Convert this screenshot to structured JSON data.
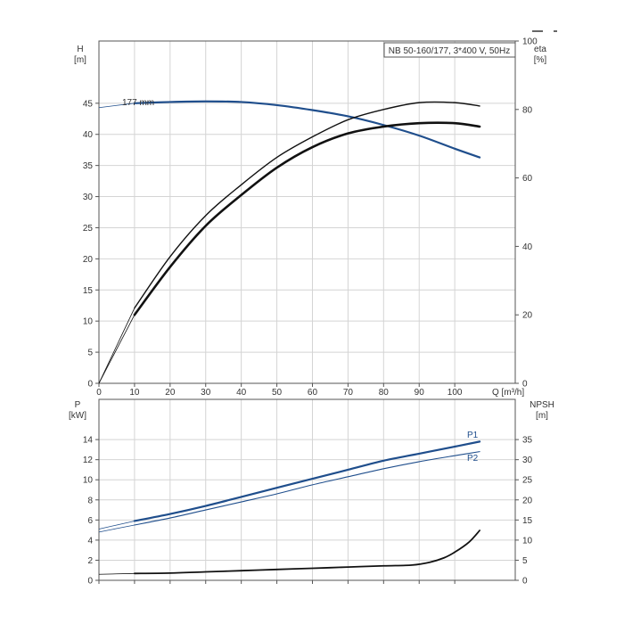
{
  "chart_data": [
    {
      "type": "line",
      "panel": "head-efficiency",
      "title": "NB 50-160/177, 3*400 V, 50Hz",
      "x_axis": {
        "label": "Q [m³/h]",
        "range": [
          0,
          117
        ],
        "ticks": [
          "0",
          "10",
          "20",
          "30",
          "40",
          "50",
          "60",
          "70",
          "80",
          "90",
          "100"
        ],
        "tick_values": [
          0,
          10,
          20,
          30,
          40,
          50,
          60,
          70,
          80,
          90,
          100
        ]
      },
      "y_left": {
        "label_top": "H",
        "label_bottom": "[m]",
        "range": [
          0,
          55
        ],
        "ticks": [
          "0",
          "5",
          "10",
          "15",
          "20",
          "25",
          "30",
          "35",
          "40",
          "45"
        ],
        "tick_values": [
          0,
          5,
          10,
          15,
          20,
          25,
          30,
          35,
          40,
          45
        ]
      },
      "y_right": {
        "label_top": "eta",
        "label_bottom": "[%]",
        "range": [
          0,
          100
        ],
        "ticks": [
          "0",
          "20",
          "40",
          "60",
          "80",
          "100"
        ],
        "tick_values": [
          0,
          20,
          40,
          60,
          80,
          100
        ]
      },
      "grid": true,
      "annotation": "177 mm",
      "series": [
        {
          "axis": "left",
          "color": "#1f4e8c",
          "width": 2.2,
          "x": [
            10,
            20,
            30,
            40,
            50,
            60,
            70,
            80,
            90,
            100,
            107
          ],
          "y": [
            45.0,
            45.2,
            45.3,
            45.2,
            44.7,
            43.9,
            42.9,
            41.5,
            39.8,
            37.7,
            36.3
          ],
          "ext_x": [
            0,
            10
          ],
          "ext_y": [
            44.3,
            45.0
          ]
        },
        {
          "axis": "right",
          "color": "#111111",
          "width": 1.4,
          "x": [
            10,
            20,
            30,
            40,
            50,
            60,
            70,
            80,
            90,
            100,
            107
          ],
          "y": [
            22,
            37,
            49,
            58,
            66,
            72,
            77,
            80,
            82,
            82,
            81
          ],
          "ext_x": [
            0,
            10
          ],
          "ext_y": [
            0,
            22
          ]
        },
        {
          "axis": "right",
          "color": "#111111",
          "width": 2.6,
          "x": [
            10,
            20,
            30,
            40,
            50,
            60,
            70,
            80,
            90,
            100,
            107
          ],
          "y": [
            20,
            34,
            46,
            55,
            63,
            69,
            73,
            75,
            76,
            76,
            75
          ],
          "ext_x": [
            0,
            10
          ],
          "ext_y": [
            0,
            20
          ]
        }
      ]
    },
    {
      "type": "line",
      "panel": "power-npsh",
      "x_axis": {
        "range": [
          0,
          117
        ],
        "tick_values": [
          0,
          10,
          20,
          30,
          40,
          50,
          60,
          70,
          80,
          90,
          100
        ]
      },
      "y_left": {
        "label_top": "P",
        "label_bottom": "[kW]",
        "range": [
          0,
          18
        ],
        "ticks": [
          "0",
          "2",
          "4",
          "6",
          "8",
          "10",
          "12",
          "14"
        ],
        "tick_values": [
          0,
          2,
          4,
          6,
          8,
          10,
          12,
          14
        ]
      },
      "y_right": {
        "label_top": "NPSH",
        "label_bottom": "[m]",
        "range": [
          0,
          45
        ],
        "ticks": [
          "0",
          "5",
          "10",
          "15",
          "20",
          "25",
          "30",
          "35"
        ],
        "tick_values": [
          0,
          5,
          10,
          15,
          20,
          25,
          30,
          35
        ]
      },
      "grid": true,
      "series": [
        {
          "name": "P1",
          "axis": "left",
          "color": "#1f4e8c",
          "width": 2.2,
          "x": [
            10,
            20,
            30,
            40,
            50,
            60,
            70,
            80,
            90,
            100,
            107
          ],
          "y": [
            5.9,
            6.6,
            7.4,
            8.3,
            9.2,
            10.1,
            11.0,
            11.9,
            12.6,
            13.3,
            13.8
          ],
          "ext_x": [
            0,
            10
          ],
          "ext_y": [
            5.1,
            5.9
          ]
        },
        {
          "name": "P2",
          "axis": "left",
          "color": "#1f4e8c",
          "width": 1.1,
          "x": [
            10,
            20,
            30,
            40,
            50,
            60,
            70,
            80,
            90,
            100,
            107
          ],
          "y": [
            5.5,
            6.2,
            7.0,
            7.8,
            8.6,
            9.5,
            10.3,
            11.1,
            11.8,
            12.4,
            12.8
          ],
          "ext_x": [
            0,
            10
          ],
          "ext_y": [
            4.8,
            5.5
          ]
        },
        {
          "axis": "right",
          "color": "#111111",
          "width": 1.8,
          "x": [
            10,
            20,
            30,
            40,
            50,
            60,
            70,
            80,
            88,
            93,
            97,
            100,
            104,
            107
          ],
          "y": [
            1.7,
            1.8,
            2.1,
            2.4,
            2.7,
            3.0,
            3.3,
            3.6,
            3.8,
            4.5,
            5.6,
            7.0,
            9.5,
            12.4
          ],
          "ext_x": [
            0,
            10
          ],
          "ext_y": [
            1.5,
            1.7
          ]
        }
      ]
    }
  ]
}
